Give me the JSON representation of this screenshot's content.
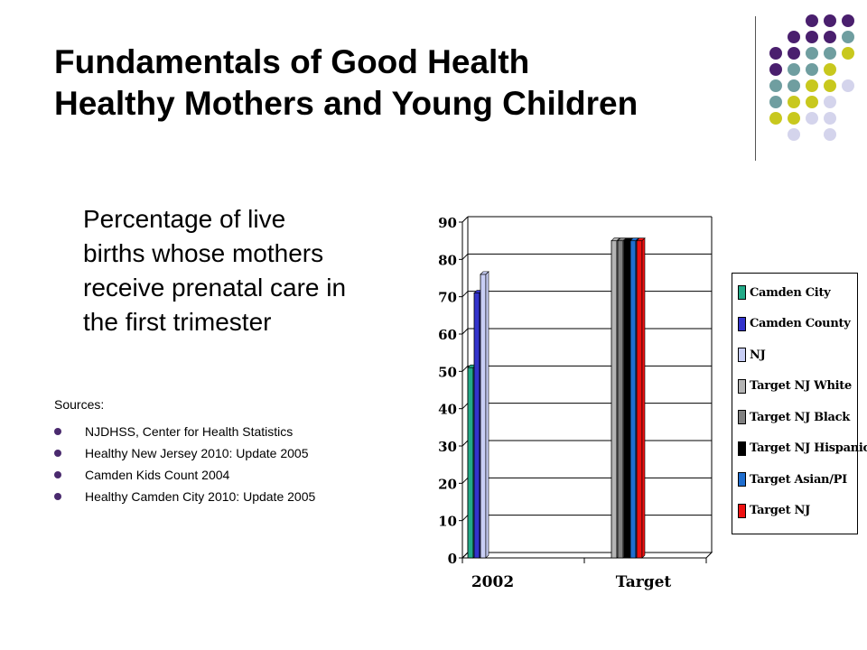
{
  "slide": {
    "title_line1": "Fundamentals of Good Health",
    "title_line2": "Healthy Mothers and Young Children",
    "description_lines": [
      "Percentage of live",
      "births whose mothers",
      "receive prenatal care in",
      "the first trimester"
    ],
    "sources_label": "Sources:",
    "sources": [
      "NJDHSS, Center for Health Statistics",
      "Healthy New Jersey 2010:  Update 2005",
      "Camden Kids Count 2004",
      "Healthy Camden City 2010:  Update 2005"
    ],
    "colors": {
      "bullet": "#4a2a6e",
      "dot_purple": "#4a1f6e",
      "dot_teal": "#6f9ea0",
      "dot_yellow": "#c8c81e",
      "dot_lavender": "#d4d4ec"
    }
  },
  "chart_data": {
    "type": "bar",
    "categories": [
      "2002",
      "Target"
    ],
    "ylim": [
      0,
      90
    ],
    "yticks": [
      0,
      10,
      20,
      30,
      40,
      50,
      60,
      70,
      80,
      90
    ],
    "grid": true,
    "legend_position": "right",
    "series": [
      {
        "name": "Camden City",
        "color": "#22aa88",
        "values": [
          51,
          null
        ]
      },
      {
        "name": "Camden County",
        "color": "#3333cc",
        "values": [
          71,
          null
        ]
      },
      {
        "name": "NJ",
        "color": "#c8cef5",
        "values": [
          76,
          null
        ]
      },
      {
        "name": "Target NJ White",
        "color": "#b4b4b4",
        "values": [
          null,
          85
        ]
      },
      {
        "name": "Target NJ Black",
        "color": "#808080",
        "values": [
          null,
          85
        ]
      },
      {
        "name": "Target NJ Hispanic",
        "color": "#000000",
        "values": [
          null,
          85
        ]
      },
      {
        "name": "Target Asian/PI",
        "color": "#1f6ecf",
        "values": [
          null,
          85
        ]
      },
      {
        "name": "Target NJ",
        "color": "#ee1111",
        "values": [
          null,
          85
        ]
      }
    ]
  }
}
